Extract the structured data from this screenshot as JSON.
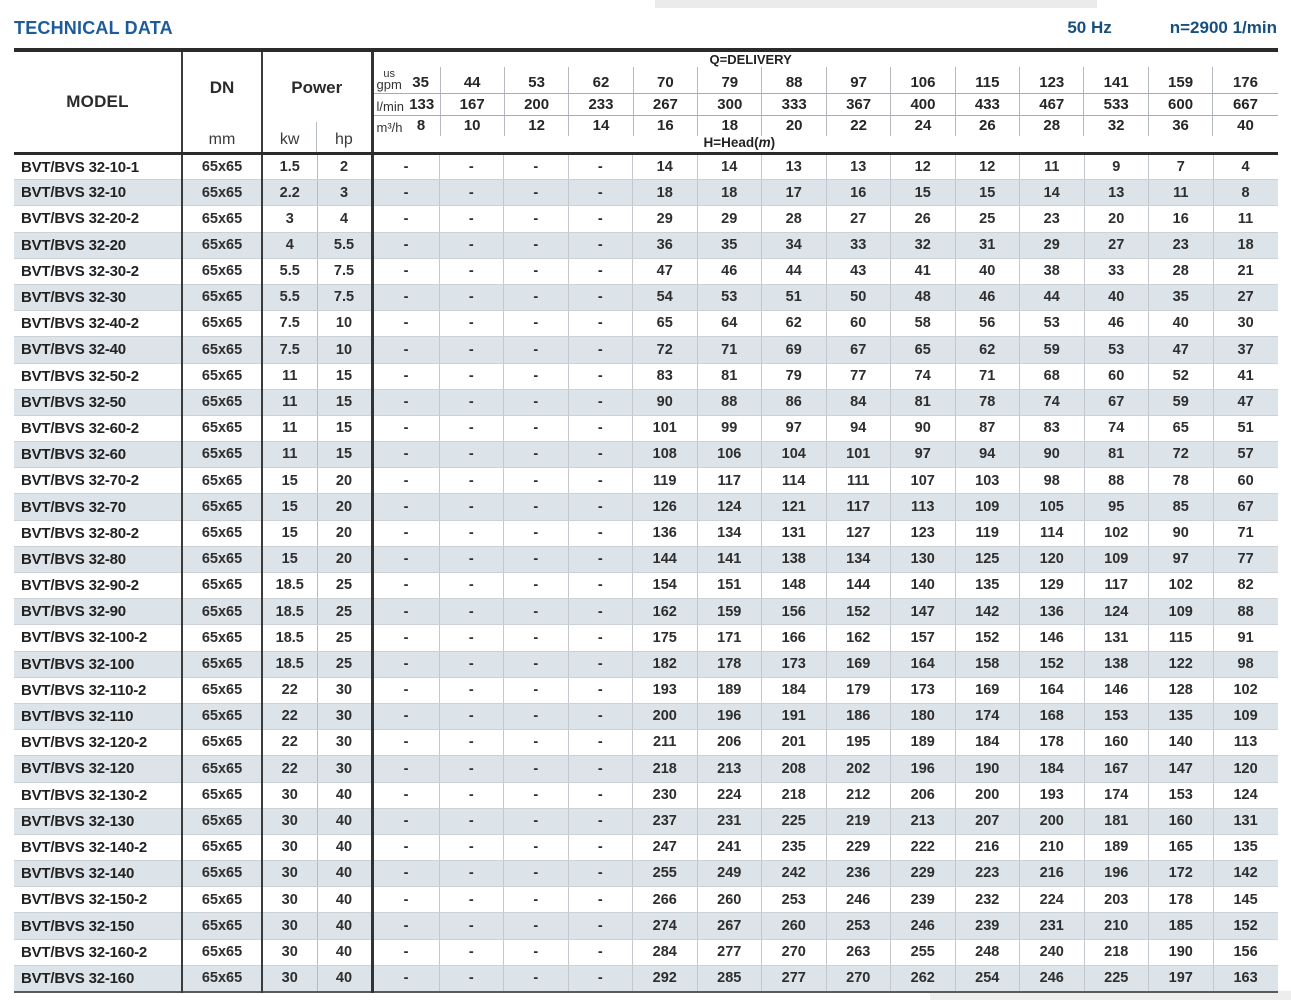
{
  "page": {
    "title": "TECHNICAL DATA",
    "frequency": "50 Hz",
    "speed": "n=2900 1/min"
  },
  "table": {
    "columns": {
      "model": "MODEL",
      "dn": "DN",
      "dn_unit": "mm",
      "power": "Power",
      "power_kw": "kw",
      "power_hp": "hp"
    },
    "delivery": {
      "label": "Q=DELIVERY",
      "head_label_pre": "H=Head(",
      "head_label_var": "m",
      "head_label_post": ")",
      "units": [
        {
          "label_top": "us",
          "label": "gpm",
          "values": [
            "35",
            "44",
            "53",
            "62",
            "70",
            "79",
            "88",
            "97",
            "106",
            "115",
            "123",
            "141",
            "159",
            "176"
          ]
        },
        {
          "label_top": "",
          "label": "l/min",
          "values": [
            "133",
            "167",
            "200",
            "233",
            "267",
            "300",
            "333",
            "367",
            "400",
            "433",
            "467",
            "533",
            "600",
            "667"
          ]
        },
        {
          "label_top": "",
          "label": "m³/h",
          "values": [
            "8",
            "10",
            "12",
            "14",
            "16",
            "18",
            "20",
            "22",
            "24",
            "26",
            "28",
            "32",
            "36",
            "40"
          ]
        }
      ]
    },
    "rows": [
      {
        "model": "BVT/BVS 32-10-1",
        "dn": "65x65",
        "kw": "1.5",
        "hp": "2",
        "head": [
          "-",
          "-",
          "-",
          "-",
          "14",
          "14",
          "13",
          "13",
          "12",
          "12",
          "11",
          "9",
          "7",
          "4"
        ]
      },
      {
        "model": "BVT/BVS 32-10",
        "dn": "65x65",
        "kw": "2.2",
        "hp": "3",
        "head": [
          "-",
          "-",
          "-",
          "-",
          "18",
          "18",
          "17",
          "16",
          "15",
          "15",
          "14",
          "13",
          "11",
          "8"
        ]
      },
      {
        "model": "BVT/BVS 32-20-2",
        "dn": "65x65",
        "kw": "3",
        "hp": "4",
        "head": [
          "-",
          "-",
          "-",
          "-",
          "29",
          "29",
          "28",
          "27",
          "26",
          "25",
          "23",
          "20",
          "16",
          "11"
        ]
      },
      {
        "model": "BVT/BVS 32-20",
        "dn": "65x65",
        "kw": "4",
        "hp": "5.5",
        "head": [
          "-",
          "-",
          "-",
          "-",
          "36",
          "35",
          "34",
          "33",
          "32",
          "31",
          "29",
          "27",
          "23",
          "18"
        ]
      },
      {
        "model": "BVT/BVS 32-30-2",
        "dn": "65x65",
        "kw": "5.5",
        "hp": "7.5",
        "head": [
          "-",
          "-",
          "-",
          "-",
          "47",
          "46",
          "44",
          "43",
          "41",
          "40",
          "38",
          "33",
          "28",
          "21"
        ]
      },
      {
        "model": "BVT/BVS 32-30",
        "dn": "65x65",
        "kw": "5.5",
        "hp": "7.5",
        "head": [
          "-",
          "-",
          "-",
          "-",
          "54",
          "53",
          "51",
          "50",
          "48",
          "46",
          "44",
          "40",
          "35",
          "27"
        ]
      },
      {
        "model": "BVT/BVS 32-40-2",
        "dn": "65x65",
        "kw": "7.5",
        "hp": "10",
        "head": [
          "-",
          "-",
          "-",
          "-",
          "65",
          "64",
          "62",
          "60",
          "58",
          "56",
          "53",
          "46",
          "40",
          "30"
        ]
      },
      {
        "model": "BVT/BVS 32-40",
        "dn": "65x65",
        "kw": "7.5",
        "hp": "10",
        "head": [
          "-",
          "-",
          "-",
          "-",
          "72",
          "71",
          "69",
          "67",
          "65",
          "62",
          "59",
          "53",
          "47",
          "37"
        ]
      },
      {
        "model": "BVT/BVS 32-50-2",
        "dn": "65x65",
        "kw": "11",
        "hp": "15",
        "head": [
          "-",
          "-",
          "-",
          "-",
          "83",
          "81",
          "79",
          "77",
          "74",
          "71",
          "68",
          "60",
          "52",
          "41"
        ]
      },
      {
        "model": "BVT/BVS 32-50",
        "dn": "65x65",
        "kw": "11",
        "hp": "15",
        "head": [
          "-",
          "-",
          "-",
          "-",
          "90",
          "88",
          "86",
          "84",
          "81",
          "78",
          "74",
          "67",
          "59",
          "47"
        ]
      },
      {
        "model": "BVT/BVS 32-60-2",
        "dn": "65x65",
        "kw": "11",
        "hp": "15",
        "head": [
          "-",
          "-",
          "-",
          "-",
          "101",
          "99",
          "97",
          "94",
          "90",
          "87",
          "83",
          "74",
          "65",
          "51"
        ]
      },
      {
        "model": "BVT/BVS 32-60",
        "dn": "65x65",
        "kw": "11",
        "hp": "15",
        "head": [
          "-",
          "-",
          "-",
          "-",
          "108",
          "106",
          "104",
          "101",
          "97",
          "94",
          "90",
          "81",
          "72",
          "57"
        ]
      },
      {
        "model": "BVT/BVS 32-70-2",
        "dn": "65x65",
        "kw": "15",
        "hp": "20",
        "head": [
          "-",
          "-",
          "-",
          "-",
          "119",
          "117",
          "114",
          "111",
          "107",
          "103",
          "98",
          "88",
          "78",
          "60"
        ]
      },
      {
        "model": "BVT/BVS 32-70",
        "dn": "65x65",
        "kw": "15",
        "hp": "20",
        "head": [
          "-",
          "-",
          "-",
          "-",
          "126",
          "124",
          "121",
          "117",
          "113",
          "109",
          "105",
          "95",
          "85",
          "67"
        ]
      },
      {
        "model": "BVT/BVS 32-80-2",
        "dn": "65x65",
        "kw": "15",
        "hp": "20",
        "head": [
          "-",
          "-",
          "-",
          "-",
          "136",
          "134",
          "131",
          "127",
          "123",
          "119",
          "114",
          "102",
          "90",
          "71"
        ]
      },
      {
        "model": "BVT/BVS 32-80",
        "dn": "65x65",
        "kw": "15",
        "hp": "20",
        "head": [
          "-",
          "-",
          "-",
          "-",
          "144",
          "141",
          "138",
          "134",
          "130",
          "125",
          "120",
          "109",
          "97",
          "77"
        ]
      },
      {
        "model": "BVT/BVS 32-90-2",
        "dn": "65x65",
        "kw": "18.5",
        "hp": "25",
        "head": [
          "-",
          "-",
          "-",
          "-",
          "154",
          "151",
          "148",
          "144",
          "140",
          "135",
          "129",
          "117",
          "102",
          "82"
        ]
      },
      {
        "model": "BVT/BVS 32-90",
        "dn": "65x65",
        "kw": "18.5",
        "hp": "25",
        "head": [
          "-",
          "-",
          "-",
          "-",
          "162",
          "159",
          "156",
          "152",
          "147",
          "142",
          "136",
          "124",
          "109",
          "88"
        ]
      },
      {
        "model": "BVT/BVS 32-100-2",
        "dn": "65x65",
        "kw": "18.5",
        "hp": "25",
        "head": [
          "-",
          "-",
          "-",
          "-",
          "175",
          "171",
          "166",
          "162",
          "157",
          "152",
          "146",
          "131",
          "115",
          "91"
        ]
      },
      {
        "model": "BVT/BVS 32-100",
        "dn": "65x65",
        "kw": "18.5",
        "hp": "25",
        "head": [
          "-",
          "-",
          "-",
          "-",
          "182",
          "178",
          "173",
          "169",
          "164",
          "158",
          "152",
          "138",
          "122",
          "98"
        ]
      },
      {
        "model": "BVT/BVS 32-110-2",
        "dn": "65x65",
        "kw": "22",
        "hp": "30",
        "head": [
          "-",
          "-",
          "-",
          "-",
          "193",
          "189",
          "184",
          "179",
          "173",
          "169",
          "164",
          "146",
          "128",
          "102"
        ]
      },
      {
        "model": "BVT/BVS 32-110",
        "dn": "65x65",
        "kw": "22",
        "hp": "30",
        "head": [
          "-",
          "-",
          "-",
          "-",
          "200",
          "196",
          "191",
          "186",
          "180",
          "174",
          "168",
          "153",
          "135",
          "109"
        ]
      },
      {
        "model": "BVT/BVS 32-120-2",
        "dn": "65x65",
        "kw": "22",
        "hp": "30",
        "head": [
          "-",
          "-",
          "-",
          "-",
          "211",
          "206",
          "201",
          "195",
          "189",
          "184",
          "178",
          "160",
          "140",
          "113"
        ]
      },
      {
        "model": "BVT/BVS 32-120",
        "dn": "65x65",
        "kw": "22",
        "hp": "30",
        "head": [
          "-",
          "-",
          "-",
          "-",
          "218",
          "213",
          "208",
          "202",
          "196",
          "190",
          "184",
          "167",
          "147",
          "120"
        ]
      },
      {
        "model": "BVT/BVS 32-130-2",
        "dn": "65x65",
        "kw": "30",
        "hp": "40",
        "head": [
          "-",
          "-",
          "-",
          "-",
          "230",
          "224",
          "218",
          "212",
          "206",
          "200",
          "193",
          "174",
          "153",
          "124"
        ]
      },
      {
        "model": "BVT/BVS 32-130",
        "dn": "65x65",
        "kw": "30",
        "hp": "40",
        "head": [
          "-",
          "-",
          "-",
          "-",
          "237",
          "231",
          "225",
          "219",
          "213",
          "207",
          "200",
          "181",
          "160",
          "131"
        ]
      },
      {
        "model": "BVT/BVS 32-140-2",
        "dn": "65x65",
        "kw": "30",
        "hp": "40",
        "head": [
          "-",
          "-",
          "-",
          "-",
          "247",
          "241",
          "235",
          "229",
          "222",
          "216",
          "210",
          "189",
          "165",
          "135"
        ]
      },
      {
        "model": "BVT/BVS 32-140",
        "dn": "65x65",
        "kw": "30",
        "hp": "40",
        "head": [
          "-",
          "-",
          "-",
          "-",
          "255",
          "249",
          "242",
          "236",
          "229",
          "223",
          "216",
          "196",
          "172",
          "142"
        ]
      },
      {
        "model": "BVT/BVS 32-150-2",
        "dn": "65x65",
        "kw": "30",
        "hp": "40",
        "head": [
          "-",
          "-",
          "-",
          "-",
          "266",
          "260",
          "253",
          "246",
          "239",
          "232",
          "224",
          "203",
          "178",
          "145"
        ]
      },
      {
        "model": "BVT/BVS 32-150",
        "dn": "65x65",
        "kw": "30",
        "hp": "40",
        "head": [
          "-",
          "-",
          "-",
          "-",
          "274",
          "267",
          "260",
          "253",
          "246",
          "239",
          "231",
          "210",
          "185",
          "152"
        ]
      },
      {
        "model": "BVT/BVS 32-160-2",
        "dn": "65x65",
        "kw": "30",
        "hp": "40",
        "head": [
          "-",
          "-",
          "-",
          "-",
          "284",
          "277",
          "270",
          "263",
          "255",
          "248",
          "240",
          "218",
          "190",
          "156"
        ]
      },
      {
        "model": "BVT/BVS 32-160",
        "dn": "65x65",
        "kw": "30",
        "hp": "40",
        "head": [
          "-",
          "-",
          "-",
          "-",
          "292",
          "285",
          "277",
          "270",
          "262",
          "254",
          "246",
          "225",
          "197",
          "163"
        ]
      }
    ]
  }
}
